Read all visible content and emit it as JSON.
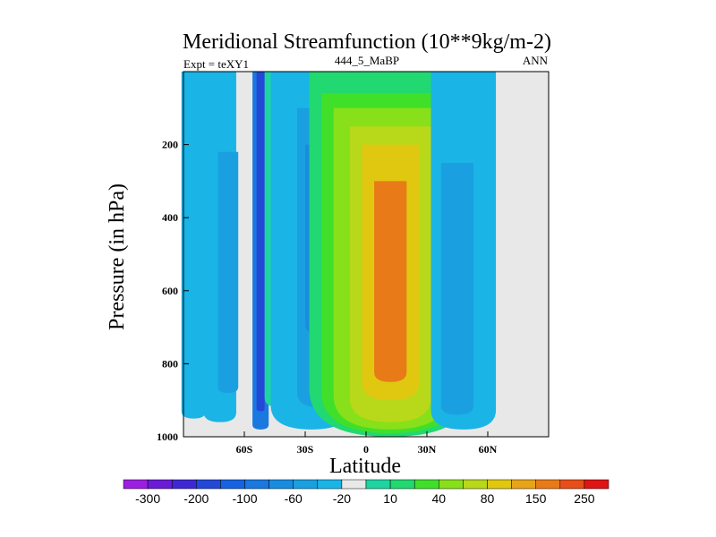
{
  "chart_data": {
    "type": "contour",
    "title": "Meridional Streamfunction (10**9kg/m-2)",
    "left_label": "Expt = teXY1",
    "center_label": "444_5_MaBP",
    "right_label": "ANN",
    "xlabel": "Latitude",
    "ylabel": "Pressure (in hPa)",
    "xlim": [
      -90,
      90
    ],
    "ylim": [
      1000,
      0
    ],
    "x_ticks": [
      {
        "value": -60,
        "label": "60S"
      },
      {
        "value": -30,
        "label": "30S"
      },
      {
        "value": 0,
        "label": "0"
      },
      {
        "value": 30,
        "label": "30N"
      },
      {
        "value": 60,
        "label": "60N"
      }
    ],
    "y_ticks": [
      200,
      400,
      600,
      800,
      1000
    ],
    "colorbar": {
      "colors": [
        "#9b1fe0",
        "#6a1bd6",
        "#3f28d4",
        "#2348d8",
        "#1563e0",
        "#1a78e0",
        "#1a8ce0",
        "#1aa0e0",
        "#1ab4e6",
        "#e8e8e8",
        "#1ed4a0",
        "#22d870",
        "#40e02a",
        "#88e01a",
        "#b8d81a",
        "#e0c810",
        "#e8a418",
        "#e87a18",
        "#e84e18",
        "#e01414"
      ],
      "labels": [
        "-300",
        "-200",
        "-100",
        "-60",
        "-20",
        "10",
        "40",
        "80",
        "150",
        "250"
      ]
    },
    "cells": [
      {
        "x": -85,
        "xw": 6,
        "top": 0,
        "bottom": 950,
        "level": 8
      },
      {
        "x": -72,
        "xw": 8,
        "top": 0,
        "bottom": 960,
        "level": 8
      },
      {
        "x": -68,
        "xw": 5,
        "top": 220,
        "bottom": 880,
        "level": 7
      },
      {
        "x": -52,
        "xw": 4,
        "top": 0,
        "bottom": 980,
        "level": 5
      },
      {
        "x": -52,
        "xw": 2,
        "top": 0,
        "bottom": 930,
        "level": 3
      },
      {
        "x": -42,
        "xw": 8,
        "top": 0,
        "bottom": 920,
        "level": 10
      },
      {
        "x": -40,
        "xw": 4,
        "top": 300,
        "bottom": 800,
        "level": 11
      },
      {
        "x": -27,
        "xw": 20,
        "top": 0,
        "bottom": 980,
        "level": 8
      },
      {
        "x": -22,
        "xw": 12,
        "top": 100,
        "bottom": 920,
        "level": 7
      },
      {
        "x": -22,
        "xw": 8,
        "top": 200,
        "bottom": 720,
        "level": 6
      },
      {
        "x": 12,
        "xw": 40,
        "top": 0,
        "bottom": 1000,
        "level": 11
      },
      {
        "x": 12,
        "xw": 34,
        "top": 60,
        "bottom": 990,
        "level": 12
      },
      {
        "x": 12,
        "xw": 28,
        "top": 100,
        "bottom": 980,
        "level": 13
      },
      {
        "x": 12,
        "xw": 20,
        "top": 150,
        "bottom": 960,
        "level": 14
      },
      {
        "x": 12,
        "xw": 14,
        "top": 200,
        "bottom": 900,
        "level": 15
      },
      {
        "x": 12,
        "xw": 8,
        "top": 300,
        "bottom": 850,
        "level": 17
      },
      {
        "x": 48,
        "xw": 16,
        "top": 0,
        "bottom": 980,
        "level": 8
      },
      {
        "x": 45,
        "xw": 8,
        "top": 250,
        "bottom": 940,
        "level": 7
      }
    ]
  }
}
